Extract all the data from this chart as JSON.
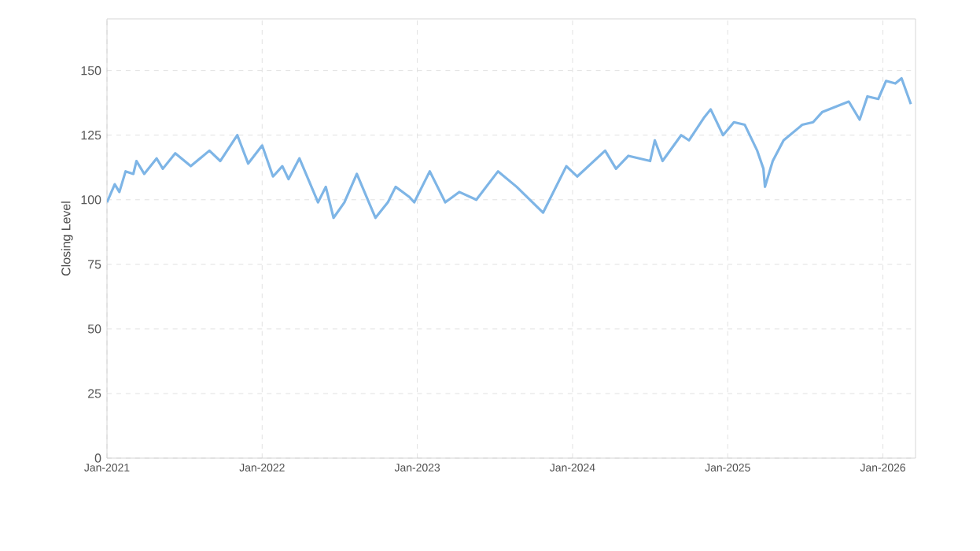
{
  "chart_data": {
    "type": "line",
    "ylabel": "Closing Level",
    "x": [
      "2021-01-01",
      "2021-01-19",
      "2021-02-01",
      "2021-02-14",
      "2021-03-04",
      "2021-03-11",
      "2021-03-29",
      "2021-04-27",
      "2021-05-12",
      "2021-06-10",
      "2021-07-16",
      "2021-08-29",
      "2021-09-24",
      "2021-11-03",
      "2021-11-28",
      "2022-01-01",
      "2022-01-26",
      "2022-02-17",
      "2022-03-04",
      "2022-03-29",
      "2022-05-12",
      "2022-05-30",
      "2022-06-18",
      "2022-07-13",
      "2022-08-11",
      "2022-09-24",
      "2022-10-23",
      "2022-11-10",
      "2022-12-13",
      "2022-12-24",
      "2023-01-30",
      "2023-03-07",
      "2023-04-09",
      "2023-05-19",
      "2023-07-09",
      "2023-08-22",
      "2023-10-23",
      "2023-12-17",
      "2024-01-12",
      "2024-03-18",
      "2024-04-13",
      "2024-05-12",
      "2024-07-02",
      "2024-07-13",
      "2024-07-31",
      "2024-09-13",
      "2024-10-01",
      "2024-11-07",
      "2024-11-21",
      "2024-12-20",
      "2025-01-15",
      "2025-02-10",
      "2025-03-11",
      "2025-03-27",
      "2025-03-31",
      "2025-04-16",
      "2025-05-12",
      "2025-06-25",
      "2025-07-20",
      "2025-08-11",
      "2025-10-12",
      "2025-11-07",
      "2025-11-25",
      "2025-12-20",
      "2026-01-08",
      "2026-01-30",
      "2026-02-14",
      "2026-03-08"
    ],
    "series": [
      {
        "color": "#7eb5e6",
        "values": [
          99,
          106,
          103,
          111,
          110,
          115,
          110,
          116,
          112,
          118,
          113,
          119,
          115,
          125,
          114,
          121,
          109,
          113,
          108,
          116,
          99,
          105,
          93,
          99,
          110,
          93,
          99,
          105,
          101,
          99,
          111,
          99,
          103,
          100,
          111,
          105,
          95,
          113,
          109,
          119,
          112,
          117,
          115,
          123,
          115,
          125,
          123,
          132,
          135,
          125,
          130,
          129,
          119,
          112,
          105,
          115,
          123,
          129,
          130,
          134,
          138,
          131,
          140,
          139,
          146,
          145,
          147,
          137
        ]
      }
    ],
    "xlim": [
      "2021-01-01",
      "2026-03-18"
    ],
    "xticks": [
      {
        "value": "2021-01-01",
        "label": "Jan-2021"
      },
      {
        "value": "2022-01-01",
        "label": "Jan-2022"
      },
      {
        "value": "2023-01-01",
        "label": "Jan-2023"
      },
      {
        "value": "2024-01-01",
        "label": "Jan-2024"
      },
      {
        "value": "2025-01-01",
        "label": "Jan-2025"
      },
      {
        "value": "2026-01-01",
        "label": "Jan-2026"
      }
    ],
    "ylim": [
      0,
      170
    ],
    "yticks": [
      0,
      25,
      50,
      75,
      100,
      125,
      150
    ],
    "grid": true,
    "line_style": "solid",
    "marker": "none"
  }
}
